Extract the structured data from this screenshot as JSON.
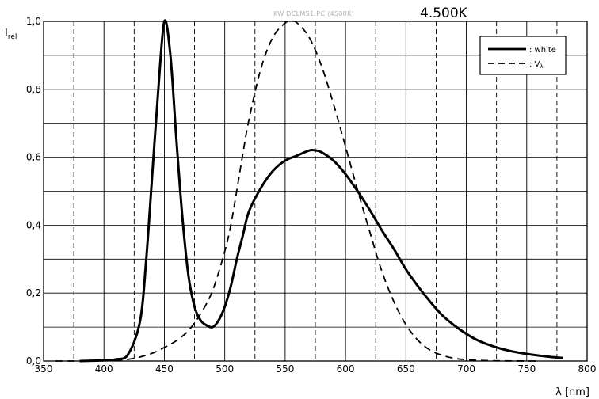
{
  "chart_data": {
    "type": "line",
    "title": "4.500K",
    "subtitle": "KW DCLMS1.PC (4500K)",
    "xlabel": "λ [nm]",
    "ylabel_main": "I",
    "ylabel_sub": "rel",
    "xlim": [
      350,
      800
    ],
    "ylim": [
      0,
      1
    ],
    "x_ticks": [
      350,
      400,
      450,
      500,
      550,
      600,
      650,
      700,
      750,
      800
    ],
    "x_tick_labels": [
      "350",
      "400",
      "450",
      "500",
      "550",
      "600",
      "650",
      "700",
      "750",
      "800"
    ],
    "y_ticks": [
      0,
      0.2,
      0.4,
      0.6,
      0.8,
      1.0
    ],
    "y_tick_labels": [
      "0,0",
      "0,2",
      "0,4",
      "0,6",
      "0,8",
      "1,0"
    ],
    "grid": true,
    "legend_position": "top-right",
    "series": [
      {
        "name": ": white",
        "style": "solid",
        "color": "#000000",
        "x": [
          380,
          400,
          410,
          420,
          430,
          435,
          440,
          445,
          450,
          455,
          460,
          465,
          470,
          475,
          480,
          485,
          490,
          495,
          500,
          505,
          510,
          515,
          520,
          530,
          540,
          550,
          560,
          570,
          575,
          580,
          590,
          600,
          610,
          620,
          630,
          640,
          650,
          660,
          670,
          680,
          690,
          700,
          710,
          720,
          730,
          740,
          750,
          760,
          770,
          780
        ],
        "values": [
          0.0,
          0.002,
          0.005,
          0.02,
          0.12,
          0.3,
          0.55,
          0.8,
          1.0,
          0.9,
          0.65,
          0.42,
          0.25,
          0.16,
          0.12,
          0.105,
          0.1,
          0.12,
          0.16,
          0.22,
          0.3,
          0.37,
          0.44,
          0.51,
          0.56,
          0.59,
          0.605,
          0.62,
          0.62,
          0.615,
          0.59,
          0.55,
          0.5,
          0.445,
          0.385,
          0.33,
          0.27,
          0.22,
          0.175,
          0.135,
          0.105,
          0.08,
          0.06,
          0.046,
          0.035,
          0.027,
          0.021,
          0.016,
          0.012,
          0.009
        ]
      },
      {
        "name": ": V",
        "name_sub": "λ",
        "style": "dashed",
        "color": "#000000",
        "x": [
          360,
          380,
          400,
          410,
          420,
          430,
          440,
          450,
          460,
          470,
          480,
          490,
          500,
          505,
          510,
          515,
          520,
          530,
          540,
          550,
          555,
          560,
          570,
          580,
          590,
          600,
          610,
          620,
          630,
          640,
          650,
          660,
          670,
          680,
          690,
          700,
          710,
          720,
          730,
          740,
          750,
          760
        ],
        "values": [
          0.0,
          0.0,
          0.001,
          0.002,
          0.005,
          0.012,
          0.023,
          0.04,
          0.06,
          0.09,
          0.139,
          0.208,
          0.323,
          0.4,
          0.503,
          0.61,
          0.71,
          0.862,
          0.954,
          0.995,
          1.0,
          0.995,
          0.952,
          0.87,
          0.757,
          0.631,
          0.503,
          0.381,
          0.265,
          0.175,
          0.107,
          0.061,
          0.032,
          0.017,
          0.008,
          0.004,
          0.002,
          0.001,
          0.0005,
          0.0002,
          0.0001,
          0.0
        ]
      }
    ]
  }
}
